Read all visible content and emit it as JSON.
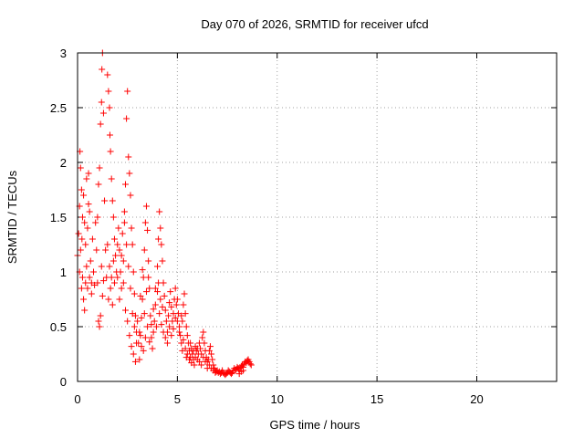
{
  "chart_data": {
    "type": "scatter",
    "title": "Day 070 of 2026, SRMTID for receiver ufcd",
    "xlabel": "GPS time / hours",
    "ylabel": "SRMTID / TECUs",
    "xlim": [
      0,
      24
    ],
    "ylim": [
      0,
      3
    ],
    "xticks": [
      "0",
      "5",
      "10",
      "15",
      "20"
    ],
    "yticks": [
      "0",
      "0.5",
      "1",
      "1.5",
      "2",
      "2.5",
      "3"
    ],
    "grid": true,
    "marker": "+",
    "color": "#ff0000",
    "series": [
      {
        "name": "SRMTID",
        "points": [
          [
            0.0,
            1.15
          ],
          [
            0.05,
            1.35
          ],
          [
            0.1,
            1.6
          ],
          [
            0.12,
            2.1
          ],
          [
            0.15,
            1.95
          ],
          [
            0.2,
            1.75
          ],
          [
            0.22,
            1.3
          ],
          [
            0.25,
            1.5
          ],
          [
            0.3,
            1.7
          ],
          [
            0.35,
            1.45
          ],
          [
            0.4,
            1.25
          ],
          [
            0.45,
            1.05
          ],
          [
            0.1,
            1.0
          ],
          [
            0.2,
            0.85
          ],
          [
            0.3,
            0.75
          ],
          [
            0.35,
            0.65
          ],
          [
            0.25,
            0.95
          ],
          [
            0.15,
            1.2
          ],
          [
            0.5,
            1.4
          ],
          [
            0.55,
            1.9
          ],
          [
            0.6,
            1.55
          ],
          [
            0.65,
            1.1
          ],
          [
            0.7,
            0.9
          ],
          [
            0.75,
            1.3
          ],
          [
            0.8,
            1.0
          ],
          [
            0.85,
            0.88
          ],
          [
            0.9,
            1.45
          ],
          [
            0.95,
            1.2
          ],
          [
            0.5,
            0.85
          ],
          [
            0.6,
            0.95
          ],
          [
            0.7,
            0.8
          ],
          [
            0.4,
            0.9
          ],
          [
            0.45,
            1.85
          ],
          [
            0.55,
            1.62
          ],
          [
            1.0,
            1.5
          ],
          [
            1.05,
            1.8
          ],
          [
            1.1,
            1.95
          ],
          [
            1.15,
            2.35
          ],
          [
            1.2,
            2.55
          ],
          [
            1.22,
            2.85
          ],
          [
            1.25,
            3.0
          ],
          [
            1.3,
            2.45
          ],
          [
            1.35,
            1.65
          ],
          [
            1.4,
            1.2
          ],
          [
            1.45,
            0.95
          ],
          [
            1.05,
            0.55
          ],
          [
            1.1,
            0.5
          ],
          [
            1.15,
            0.6
          ],
          [
            1.0,
            0.9
          ],
          [
            1.2,
            1.05
          ],
          [
            1.3,
            0.92
          ],
          [
            1.25,
            0.78
          ],
          [
            1.5,
            2.8
          ],
          [
            1.55,
            2.65
          ],
          [
            1.6,
            2.5
          ],
          [
            1.62,
            2.25
          ],
          [
            1.65,
            2.1
          ],
          [
            1.7,
            1.85
          ],
          [
            1.75,
            1.65
          ],
          [
            1.8,
            1.5
          ],
          [
            1.85,
            1.3
          ],
          [
            1.9,
            1.15
          ],
          [
            1.5,
            1.25
          ],
          [
            1.6,
            1.05
          ],
          [
            1.7,
            0.95
          ],
          [
            1.55,
            0.75
          ],
          [
            1.65,
            0.85
          ],
          [
            1.75,
            0.7
          ],
          [
            1.8,
            1.1
          ],
          [
            1.85,
            0.9
          ],
          [
            1.95,
            1.0
          ],
          [
            2.0,
            1.25
          ],
          [
            2.05,
            1.4
          ],
          [
            2.1,
            1.2
          ],
          [
            2.15,
            1.0
          ],
          [
            2.2,
            0.85
          ],
          [
            2.25,
            1.35
          ],
          [
            2.3,
            1.1
          ],
          [
            2.35,
            1.55
          ],
          [
            2.4,
            1.8
          ],
          [
            2.45,
            2.4
          ],
          [
            2.5,
            2.65
          ],
          [
            2.55,
            2.05
          ],
          [
            2.6,
            1.9
          ],
          [
            2.65,
            1.7
          ],
          [
            2.7,
            1.4
          ],
          [
            2.75,
            1.25
          ],
          [
            2.8,
            1.0
          ],
          [
            2.85,
            0.8
          ],
          [
            2.9,
            0.6
          ],
          [
            2.95,
            0.45
          ],
          [
            2.0,
            0.95
          ],
          [
            2.1,
            0.75
          ],
          [
            2.2,
            1.15
          ],
          [
            2.3,
            0.9
          ],
          [
            2.4,
            0.65
          ],
          [
            2.5,
            0.55
          ],
          [
            2.6,
            0.42
          ],
          [
            2.7,
            0.32
          ],
          [
            2.8,
            0.25
          ],
          [
            2.9,
            0.18
          ],
          [
            2.95,
            0.35
          ],
          [
            2.85,
            0.5
          ],
          [
            2.75,
            0.62
          ],
          [
            2.65,
            0.85
          ],
          [
            2.55,
            1.05
          ],
          [
            2.45,
            1.25
          ],
          [
            2.35,
            1.45
          ],
          [
            3.0,
            0.55
          ],
          [
            3.05,
            0.35
          ],
          [
            3.1,
            0.2
          ],
          [
            3.15,
            0.42
          ],
          [
            3.2,
            0.58
          ],
          [
            3.25,
            0.75
          ],
          [
            3.3,
            0.95
          ],
          [
            3.35,
            1.2
          ],
          [
            3.4,
            1.45
          ],
          [
            3.45,
            1.6
          ],
          [
            3.5,
            1.38
          ],
          [
            3.55,
            1.1
          ],
          [
            3.6,
            0.85
          ],
          [
            3.65,
            0.6
          ],
          [
            3.7,
            0.4
          ],
          [
            3.75,
            0.3
          ],
          [
            3.8,
            0.45
          ],
          [
            3.85,
            0.55
          ],
          [
            3.9,
            0.7
          ],
          [
            3.95,
            0.5
          ],
          [
            3.1,
            0.45
          ],
          [
            3.2,
            0.32
          ],
          [
            3.3,
            0.28
          ],
          [
            3.4,
            0.4
          ],
          [
            3.5,
            0.5
          ],
          [
            3.6,
            0.36
          ],
          [
            3.7,
            0.52
          ],
          [
            3.8,
            0.66
          ],
          [
            3.9,
            0.85
          ],
          [
            3.35,
            0.62
          ],
          [
            3.45,
            0.82
          ],
          [
            3.55,
            0.95
          ],
          [
            3.25,
            1.02
          ],
          [
            3.15,
            0.78
          ],
          [
            4.0,
            1.05
          ],
          [
            4.05,
            1.3
          ],
          [
            4.1,
            1.55
          ],
          [
            4.15,
            1.4
          ],
          [
            4.2,
            1.25
          ],
          [
            4.25,
            1.1
          ],
          [
            4.3,
            0.9
          ],
          [
            4.35,
            0.78
          ],
          [
            4.4,
            0.65
          ],
          [
            4.45,
            0.55
          ],
          [
            4.5,
            0.45
          ],
          [
            4.55,
            0.6
          ],
          [
            4.6,
            0.72
          ],
          [
            4.65,
            0.82
          ],
          [
            4.7,
            0.68
          ],
          [
            4.75,
            0.55
          ],
          [
            4.8,
            0.62
          ],
          [
            4.85,
            0.75
          ],
          [
            4.9,
            0.85
          ],
          [
            4.95,
            0.7
          ],
          [
            4.0,
            0.82
          ],
          [
            4.1,
            0.62
          ],
          [
            4.2,
            0.52
          ],
          [
            4.3,
            0.45
          ],
          [
            4.4,
            0.4
          ],
          [
            4.5,
            0.35
          ],
          [
            4.6,
            0.5
          ],
          [
            4.7,
            0.42
          ],
          [
            4.8,
            0.48
          ],
          [
            4.9,
            0.58
          ],
          [
            4.05,
            0.9
          ],
          [
            4.15,
            0.75
          ],
          [
            4.25,
            0.68
          ],
          [
            5.0,
            0.75
          ],
          [
            5.05,
            0.62
          ],
          [
            5.1,
            0.5
          ],
          [
            5.15,
            0.42
          ],
          [
            5.2,
            0.35
          ],
          [
            5.25,
            0.55
          ],
          [
            5.3,
            0.7
          ],
          [
            5.35,
            0.8
          ],
          [
            5.4,
            0.62
          ],
          [
            5.45,
            0.5
          ],
          [
            5.5,
            0.42
          ],
          [
            5.55,
            0.35
          ],
          [
            5.6,
            0.28
          ],
          [
            5.65,
            0.22
          ],
          [
            5.7,
            0.3
          ],
          [
            5.75,
            0.25
          ],
          [
            5.8,
            0.2
          ],
          [
            5.85,
            0.15
          ],
          [
            5.9,
            0.22
          ],
          [
            5.95,
            0.28
          ],
          [
            5.0,
            0.55
          ],
          [
            5.1,
            0.45
          ],
          [
            5.2,
            0.6
          ],
          [
            5.3,
            0.38
          ],
          [
            5.4,
            0.3
          ],
          [
            5.5,
            0.25
          ],
          [
            5.6,
            0.2
          ],
          [
            5.7,
            0.17
          ],
          [
            5.8,
            0.28
          ],
          [
            5.9,
            0.32
          ],
          [
            5.25,
            0.28
          ],
          [
            5.45,
            0.22
          ],
          [
            5.65,
            0.35
          ],
          [
            6.0,
            0.3
          ],
          [
            6.05,
            0.25
          ],
          [
            6.1,
            0.35
          ],
          [
            6.15,
            0.3
          ],
          [
            6.2,
            0.25
          ],
          [
            6.25,
            0.4
          ],
          [
            6.3,
            0.45
          ],
          [
            6.35,
            0.35
          ],
          [
            6.4,
            0.28
          ],
          [
            6.45,
            0.22
          ],
          [
            6.5,
            0.18
          ],
          [
            6.55,
            0.2
          ],
          [
            6.6,
            0.28
          ],
          [
            6.65,
            0.32
          ],
          [
            6.7,
            0.25
          ],
          [
            6.75,
            0.2
          ],
          [
            6.8,
            0.15
          ],
          [
            6.85,
            0.12
          ],
          [
            6.9,
            0.1
          ],
          [
            6.95,
            0.09
          ],
          [
            6.0,
            0.2
          ],
          [
            6.1,
            0.18
          ],
          [
            6.2,
            0.15
          ],
          [
            6.3,
            0.22
          ],
          [
            6.4,
            0.18
          ],
          [
            6.5,
            0.12
          ],
          [
            6.6,
            0.15
          ],
          [
            6.7,
            0.12
          ],
          [
            6.8,
            0.1
          ],
          [
            6.9,
            0.08
          ],
          [
            7.0,
            0.1
          ],
          [
            7.05,
            0.08
          ],
          [
            7.1,
            0.09
          ],
          [
            7.15,
            0.07
          ],
          [
            7.2,
            0.08
          ],
          [
            7.25,
            0.1
          ],
          [
            7.3,
            0.08
          ],
          [
            7.35,
            0.07
          ],
          [
            7.4,
            0.06
          ],
          [
            7.45,
            0.07
          ],
          [
            7.5,
            0.08
          ],
          [
            7.55,
            0.1
          ],
          [
            7.6,
            0.09
          ],
          [
            7.65,
            0.08
          ],
          [
            7.7,
            0.07
          ],
          [
            7.75,
            0.08
          ],
          [
            7.8,
            0.1
          ],
          [
            7.85,
            0.12
          ],
          [
            7.9,
            0.1
          ],
          [
            7.95,
            0.11
          ],
          [
            8.0,
            0.13
          ],
          [
            8.05,
            0.12
          ],
          [
            8.1,
            0.1
          ],
          [
            8.15,
            0.12
          ],
          [
            8.2,
            0.14
          ],
          [
            8.25,
            0.15
          ],
          [
            8.3,
            0.13
          ],
          [
            8.35,
            0.16
          ],
          [
            8.4,
            0.18
          ],
          [
            8.45,
            0.17
          ],
          [
            8.5,
            0.19
          ],
          [
            8.55,
            0.2
          ],
          [
            8.6,
            0.18
          ],
          [
            8.65,
            0.16
          ],
          [
            8.7,
            0.15
          ],
          [
            8.1,
            0.07
          ],
          [
            8.2,
            0.09
          ],
          [
            8.3,
            0.1
          ]
        ]
      }
    ]
  }
}
